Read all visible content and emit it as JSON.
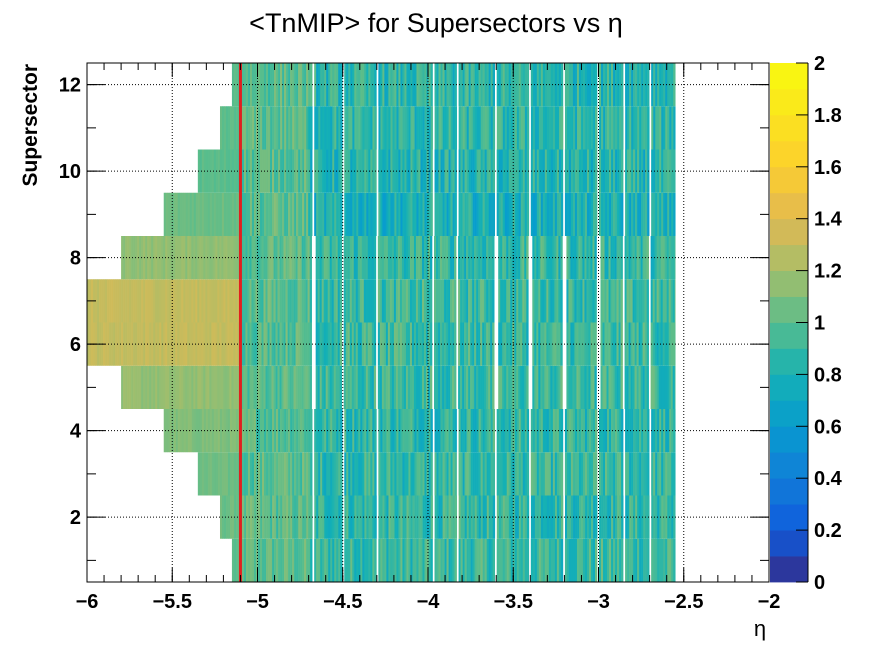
{
  "chart_data": {
    "type": "heatmap",
    "title": "<TnMIP> for Supersectors vs η",
    "xlabel": "η",
    "ylabel": "Supersector",
    "xlim": [
      -6,
      -2
    ],
    "ylim": [
      0.5,
      12.5
    ],
    "x_ticks": [
      -6,
      -5.5,
      -5,
      -4.5,
      -4,
      -3.5,
      -3,
      -2.5,
      -2
    ],
    "x_tick_labels": [
      "−6",
      "−5.5",
      "−5",
      "−4.5",
      "−4",
      "−3.5",
      "−3",
      "−2.5",
      "−2"
    ],
    "y_ticks": [
      2,
      4,
      6,
      8,
      10,
      12
    ],
    "y_tick_labels": [
      "2",
      "4",
      "6",
      "8",
      "10",
      "12"
    ],
    "grid": true,
    "colorbar": {
      "min": 0,
      "max": 2,
      "ticks": [
        0,
        0.2,
        0.4,
        0.6,
        0.8,
        1,
        1.2,
        1.4,
        1.6,
        1.8,
        2
      ],
      "tick_labels": [
        "0",
        "0.2",
        "0.4",
        "0.6",
        "0.8",
        "1",
        "1.2",
        "1.4",
        "1.6",
        "1.8",
        "2"
      ]
    },
    "reference_line": {
      "x": -5.1,
      "color": "#e02020"
    },
    "eta_max": -2.55,
    "rows": [
      {
        "supersector": 1,
        "eta_min": -5.15,
        "mean": 0.9,
        "left_value": 1.0
      },
      {
        "supersector": 2,
        "eta_min": -5.22,
        "mean": 0.88,
        "left_value": 1.05
      },
      {
        "supersector": 3,
        "eta_min": -5.35,
        "mean": 0.88,
        "left_value": 1.05
      },
      {
        "supersector": 4,
        "eta_min": -5.55,
        "mean": 0.88,
        "left_value": 1.1
      },
      {
        "supersector": 5,
        "eta_min": -5.8,
        "mean": 0.9,
        "left_value": 1.15
      },
      {
        "supersector": 6,
        "eta_min": -6.0,
        "mean": 0.9,
        "left_value": 1.3
      },
      {
        "supersector": 7,
        "eta_min": -6.0,
        "mean": 0.9,
        "left_value": 1.3
      },
      {
        "supersector": 8,
        "eta_min": -5.8,
        "mean": 0.88,
        "left_value": 1.15
      },
      {
        "supersector": 9,
        "eta_min": -5.55,
        "mean": 0.78,
        "left_value": 1.05
      },
      {
        "supersector": 10,
        "eta_min": -5.35,
        "mean": 0.82,
        "left_value": 1.0
      },
      {
        "supersector": 11,
        "eta_min": -5.22,
        "mean": 0.85,
        "left_value": 1.0
      },
      {
        "supersector": 12,
        "eta_min": -5.15,
        "mean": 0.85,
        "left_value": 1.0
      }
    ],
    "gap_columns_eta": [
      -4.67,
      -4.5,
      -4.3,
      -3.97,
      -3.83,
      -3.6,
      -3.4,
      -3.2,
      -3.0,
      -2.85,
      -2.7
    ]
  }
}
